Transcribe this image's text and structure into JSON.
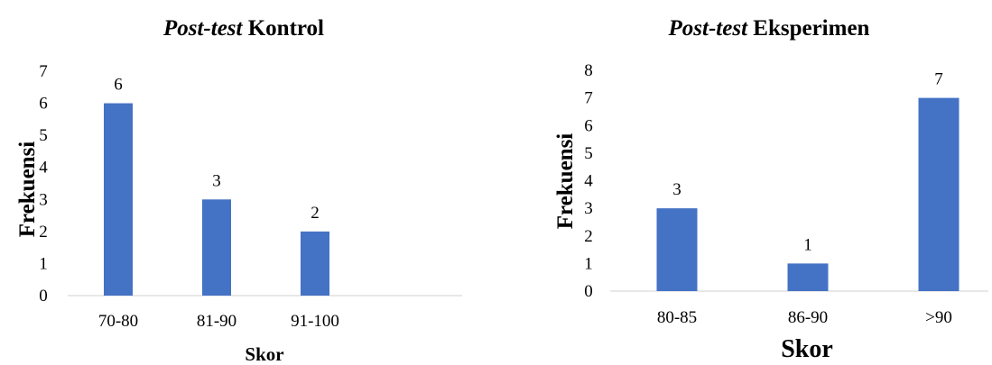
{
  "chart_data": [
    {
      "type": "bar",
      "title_italic": "Post-test",
      "title_rest": "Kontrol",
      "xlabel": "Skor",
      "ylabel": "Frekuensi",
      "categories": [
        "70-80",
        "81-90",
        "91-100"
      ],
      "values": [
        6,
        3,
        2
      ],
      "ylim": [
        0,
        7
      ],
      "yticks": [
        "0",
        "1",
        "2",
        "3",
        "4",
        "5",
        "6",
        "7"
      ],
      "grid": false,
      "bar_color": "#4472C4"
    },
    {
      "type": "bar",
      "title_italic": "Post-test",
      "title_rest": "Eksperimen",
      "xlabel": "Skor",
      "ylabel": "Frekuensi",
      "categories": [
        "80-85",
        "86-90",
        ">90"
      ],
      "values": [
        3,
        1,
        7
      ],
      "ylim": [
        0,
        8
      ],
      "yticks": [
        "0",
        "1",
        "2",
        "3",
        "4",
        "5",
        "6",
        "7",
        "8"
      ],
      "grid": false,
      "bar_color": "#4472C4"
    }
  ]
}
